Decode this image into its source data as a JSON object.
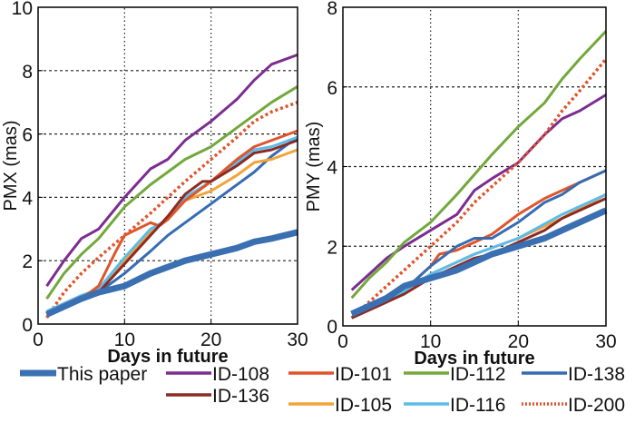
{
  "chart_data": [
    {
      "type": "line",
      "ylabel": "PMX (mas)",
      "xlabel": "Days in future",
      "xlim": [
        0,
        30
      ],
      "ylim": [
        0,
        10
      ],
      "xticks": [
        "0",
        "10",
        "20",
        "30"
      ],
      "yticks": [
        "0",
        "2",
        "4",
        "6",
        "8",
        "10"
      ],
      "grid": true,
      "series": [
        {
          "name": "ID-108",
          "x": [
            1,
            3,
            5,
            7,
            10,
            13,
            15,
            17,
            20,
            23,
            25,
            27,
            30
          ],
          "y": [
            1.2,
            2.0,
            2.7,
            3.0,
            4.0,
            4.9,
            5.2,
            5.8,
            6.4,
            7.1,
            7.7,
            8.2,
            8.5
          ]
        },
        {
          "name": "ID-112",
          "x": [
            1,
            3,
            5,
            7,
            10,
            13,
            15,
            17,
            20,
            23,
            25,
            27,
            30
          ],
          "y": [
            0.8,
            1.6,
            2.2,
            2.7,
            3.7,
            4.4,
            4.8,
            5.2,
            5.6,
            6.2,
            6.6,
            7.0,
            7.5
          ]
        },
        {
          "name": "ID-200",
          "x": [
            1,
            3,
            5,
            7,
            10,
            13,
            15,
            17,
            20,
            23,
            25,
            27,
            30
          ],
          "y": [
            0.2,
            1.0,
            1.6,
            2.1,
            2.8,
            3.5,
            4.0,
            4.5,
            5.2,
            5.9,
            6.4,
            6.7,
            7.0
          ]
        },
        {
          "name": "ID-138",
          "x": [
            1,
            5,
            7,
            10,
            13,
            15,
            17,
            20,
            23,
            25,
            27,
            30
          ],
          "y": [
            0.3,
            0.9,
            1.0,
            1.6,
            2.3,
            2.8,
            3.2,
            3.8,
            4.4,
            4.8,
            5.3,
            5.9
          ]
        },
        {
          "name": "ID-105",
          "x": [
            1,
            5,
            7,
            10,
            13,
            15,
            17,
            20,
            23,
            25,
            27,
            30
          ],
          "y": [
            0.4,
            0.9,
            1.1,
            2.0,
            2.9,
            3.3,
            3.9,
            4.2,
            4.7,
            5.1,
            5.2,
            5.5
          ]
        },
        {
          "name": "ID-116",
          "x": [
            1,
            5,
            7,
            10,
            13,
            15,
            17,
            20,
            23,
            25,
            27,
            30
          ],
          "y": [
            0.4,
            0.9,
            1.1,
            2.1,
            3.0,
            3.3,
            4.0,
            4.5,
            5.1,
            5.5,
            5.6,
            5.9
          ]
        },
        {
          "name": "ID-101",
          "x": [
            1,
            5,
            7,
            9,
            10,
            13,
            14,
            15,
            17,
            20,
            23,
            25,
            27,
            30
          ],
          "y": [
            0.3,
            0.8,
            1.2,
            2.3,
            2.8,
            3.2,
            3.1,
            3.3,
            3.9,
            4.5,
            5.2,
            5.6,
            5.8,
            6.1
          ]
        },
        {
          "name": "ID-136",
          "x": [
            1,
            5,
            7,
            10,
            13,
            15,
            17,
            19,
            20,
            23,
            25,
            27,
            30
          ],
          "y": [
            0.3,
            0.8,
            1.0,
            1.9,
            2.8,
            3.4,
            4.1,
            4.5,
            4.5,
            5.0,
            5.4,
            5.5,
            5.8
          ]
        },
        {
          "name": "This paper",
          "x": [
            1,
            5,
            7,
            10,
            13,
            15,
            17,
            20,
            23,
            25,
            27,
            30
          ],
          "y": [
            0.3,
            0.8,
            1.0,
            1.2,
            1.6,
            1.8,
            2.0,
            2.2,
            2.4,
            2.6,
            2.7,
            2.9
          ]
        }
      ]
    },
    {
      "type": "line",
      "ylabel": "PMY (mas)",
      "xlabel": "Days in future",
      "xlim": [
        0,
        30
      ],
      "ylim": [
        0,
        8
      ],
      "xticks": [
        "0",
        "10",
        "20",
        "30"
      ],
      "yticks": [
        "0",
        "2",
        "4",
        "6",
        "8"
      ],
      "grid": true,
      "series": [
        {
          "name": "ID-108",
          "x": [
            1,
            3,
            5,
            7,
            10,
            13,
            15,
            17,
            20,
            23,
            25,
            27,
            30
          ],
          "y": [
            0.9,
            1.3,
            1.7,
            2.0,
            2.4,
            2.8,
            3.4,
            3.7,
            4.1,
            4.8,
            5.2,
            5.4,
            5.8
          ]
        },
        {
          "name": "ID-112",
          "x": [
            1,
            3,
            5,
            7,
            10,
            13,
            15,
            17,
            20,
            23,
            25,
            27,
            30
          ],
          "y": [
            0.7,
            1.2,
            1.6,
            2.1,
            2.6,
            3.3,
            3.8,
            4.3,
            5.0,
            5.6,
            6.2,
            6.7,
            7.4
          ]
        },
        {
          "name": "ID-200",
          "x": [
            1,
            3,
            5,
            7,
            10,
            13,
            15,
            17,
            20,
            23,
            25,
            27,
            30
          ],
          "y": [
            0.2,
            0.6,
            1.0,
            1.4,
            2.0,
            2.6,
            3.1,
            3.5,
            4.1,
            4.8,
            5.4,
            5.9,
            6.7
          ]
        },
        {
          "name": "ID-101",
          "x": [
            1,
            5,
            7,
            10,
            11,
            13,
            15,
            17,
            20,
            23,
            25,
            27,
            30
          ],
          "y": [
            0.2,
            0.6,
            0.9,
            1.5,
            1.8,
            1.9,
            2.1,
            2.3,
            2.8,
            3.2,
            3.4,
            3.6,
            3.9
          ]
        },
        {
          "name": "ID-138",
          "x": [
            1,
            5,
            7,
            10,
            13,
            15,
            17,
            20,
            23,
            25,
            27,
            30
          ],
          "y": [
            0.3,
            0.7,
            0.9,
            1.5,
            2.0,
            2.2,
            2.2,
            2.6,
            3.1,
            3.3,
            3.6,
            3.9
          ]
        },
        {
          "name": "ID-105",
          "x": [
            1,
            5,
            10,
            15,
            20,
            25,
            30
          ],
          "y": [
            0.2,
            0.6,
            1.3,
            1.8,
            2.2,
            2.7,
            3.3
          ]
        },
        {
          "name": "ID-116",
          "x": [
            1,
            5,
            10,
            15,
            20,
            25,
            30
          ],
          "y": [
            0.2,
            0.6,
            1.3,
            1.8,
            2.2,
            2.8,
            3.3
          ]
        },
        {
          "name": "ID-136",
          "x": [
            1,
            5,
            7,
            10,
            13,
            15,
            17,
            20,
            23,
            25,
            27,
            30
          ],
          "y": [
            0.2,
            0.6,
            0.8,
            1.2,
            1.5,
            1.7,
            1.8,
            2.1,
            2.4,
            2.7,
            2.9,
            3.2
          ]
        },
        {
          "name": "This paper",
          "x": [
            1,
            5,
            7,
            10,
            13,
            15,
            17,
            20,
            23,
            25,
            27,
            30
          ],
          "y": [
            0.3,
            0.7,
            1.0,
            1.2,
            1.4,
            1.6,
            1.8,
            2.0,
            2.2,
            2.4,
            2.6,
            2.9
          ]
        }
      ]
    }
  ],
  "legend": {
    "placement": "bottom",
    "entries": [
      {
        "name": "This paper",
        "color": "#3a6fb2",
        "style": "thick"
      },
      {
        "name": "ID-108",
        "color": "#7b2d90",
        "style": "solid"
      },
      {
        "name": "ID-101",
        "color": "#e0542b",
        "style": "solid"
      },
      {
        "name": "ID-112",
        "color": "#72a83c",
        "style": "solid"
      },
      {
        "name": "ID-138",
        "color": "#356cb3",
        "style": "solid"
      },
      {
        "name": "ID-136",
        "color": "#8c2b24",
        "style": "solid"
      },
      {
        "name": "ID-105",
        "color": "#f0a43a",
        "style": "solid"
      },
      {
        "name": "ID-116",
        "color": "#5cbce9",
        "style": "solid"
      },
      {
        "name": "ID-200",
        "color": "#e0542b",
        "style": "dotted"
      }
    ]
  }
}
